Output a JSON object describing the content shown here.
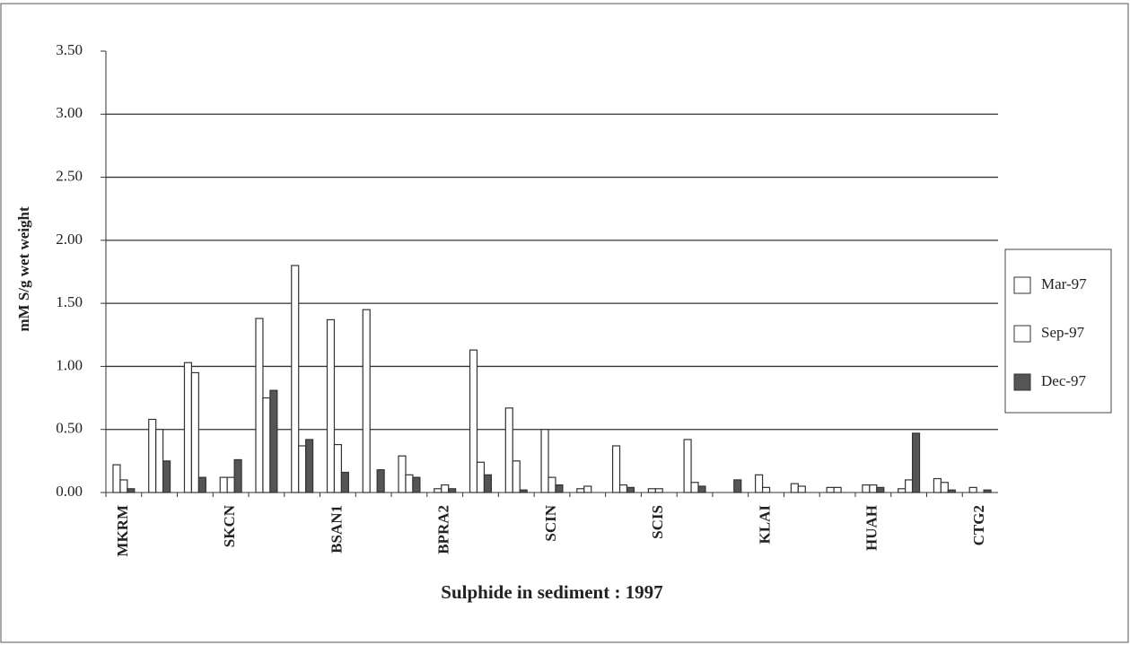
{
  "chart_data": {
    "type": "bar",
    "title": "Sulphide in sediment : 1997",
    "y_label": "mM S/g wet weight",
    "categories": [
      "MKRM",
      null,
      null,
      "SKCN",
      null,
      null,
      "BSAN1",
      null,
      null,
      "BPRA2",
      null,
      null,
      "SCIN",
      null,
      null,
      "SCIS",
      null,
      null,
      "KLAI",
      null,
      null,
      "HUAH",
      null,
      null,
      "CTG2"
    ],
    "series": [
      {
        "name": "Mar-97",
        "color": "#ffffff",
        "values": [
          0.22,
          0.58,
          1.03,
          0.12,
          1.38,
          1.8,
          1.37,
          1.45,
          0.29,
          0.03,
          1.13,
          0.67,
          0.5,
          0.03,
          0.37,
          0.03,
          0.42,
          0,
          0.14,
          0.07,
          0.04,
          0.06,
          0.03,
          0.11,
          0.04
        ]
      },
      {
        "name": "Sep-97",
        "color": "#ffffff",
        "values": [
          0.1,
          0.5,
          0.95,
          0.12,
          0.75,
          0.37,
          0.38,
          0,
          0.14,
          0.06,
          0.24,
          0.25,
          0.12,
          0.05,
          0.06,
          0.03,
          0.08,
          0,
          0.04,
          0.05,
          0.04,
          0.06,
          0.1,
          0.08,
          0
        ]
      },
      {
        "name": "Dec-97",
        "color": "#555555",
        "values": [
          0.03,
          0.25,
          0.12,
          0.26,
          0.81,
          0.42,
          0.16,
          0.18,
          0.12,
          0.03,
          0.14,
          0.02,
          0.06,
          0,
          0.04,
          0,
          0.05,
          0.1,
          0,
          0,
          0,
          0.04,
          0.47,
          0.02,
          0.02
        ]
      }
    ],
    "ylim": [
      0,
      3.5
    ],
    "yticks": [
      {
        "value": 0,
        "label": "0.00"
      },
      {
        "value": 0.5,
        "label": "0.50"
      },
      {
        "value": 1,
        "label": "1.00"
      },
      {
        "value": 1.5,
        "label": "1.50"
      },
      {
        "value": 2,
        "label": "2.00"
      },
      {
        "value": 2.5,
        "label": "2.50"
      },
      {
        "value": 3,
        "label": "3.00"
      },
      {
        "value": 3.5,
        "label": "3.50"
      }
    ],
    "grid": true
  }
}
